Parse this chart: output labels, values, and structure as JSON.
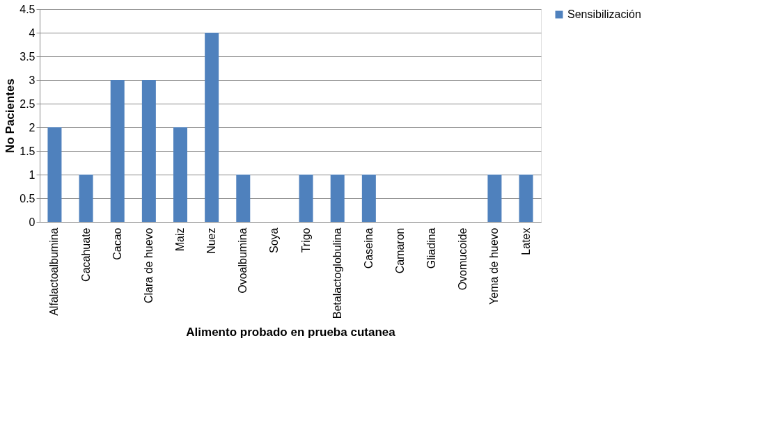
{
  "chart_data": {
    "type": "bar",
    "xlabel": "Alimento probado en prueba cutanea",
    "ylabel": "No Pacientes",
    "categories": [
      "Alfalactoalbumina",
      "Cacahuate",
      "Cacao",
      "Clara de huevo",
      "Maiz",
      "Nuez",
      "Ovoalbumina",
      "Soya",
      "Trigo",
      "Betalactoglobulina",
      "Caseina",
      "Camaron",
      "Gliadina",
      "Ovomucoide",
      "Yema de huevo",
      "Latex"
    ],
    "series": [
      {
        "name": "Sensibilización",
        "color": "#4f81bd",
        "values": [
          2,
          1,
          3,
          3,
          2,
          4,
          1,
          0,
          1,
          1,
          1,
          0,
          0,
          0,
          1,
          1
        ]
      }
    ],
    "ylim": [
      0,
      4.5
    ],
    "yticks": [
      0,
      0.5,
      1,
      1.5,
      2,
      2.5,
      3,
      3.5,
      4,
      4.5
    ],
    "grid": "y",
    "legend": "right"
  }
}
